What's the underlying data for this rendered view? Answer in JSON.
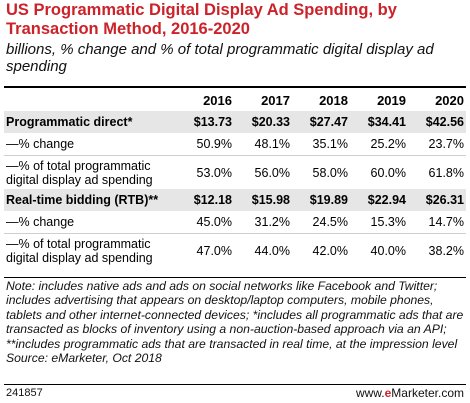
{
  "title": "US Programmatic Digital Display Ad Spending, by Transaction Method, 2016-2020",
  "subtitle": "billions, % change and % of total programmatic digital display ad spending",
  "chart_data": {
    "type": "table",
    "columns": [
      "2016",
      "2017",
      "2018",
      "2019",
      "2020"
    ],
    "rows": [
      {
        "label": "Programmatic direct*",
        "values": [
          "$13.73",
          "$20.33",
          "$27.47",
          "$34.41",
          "$42.56"
        ]
      },
      {
        "label": "—% change",
        "values": [
          "50.9%",
          "48.1%",
          "35.1%",
          "25.2%",
          "23.7%"
        ]
      },
      {
        "label": "—% of total programmatic digital display ad spending",
        "values": [
          "53.0%",
          "56.0%",
          "58.0%",
          "60.0%",
          "61.8%"
        ]
      },
      {
        "label": "Real-time bidding (RTB)**",
        "values": [
          "$12.18",
          "$15.98",
          "$19.89",
          "$22.94",
          "$26.31"
        ]
      },
      {
        "label": "—% change",
        "values": [
          "45.0%",
          "31.2%",
          "24.5%",
          "15.3%",
          "14.7%"
        ]
      },
      {
        "label": "—% of total programmatic digital display ad spending",
        "values": [
          "47.0%",
          "44.0%",
          "42.0%",
          "40.0%",
          "38.2%"
        ]
      }
    ]
  },
  "note": "Note: includes native ads and ads on social networks like Facebook and Twitter; includes advertising that appears on desktop/laptop computers, mobile phones, tablets and other internet-connected devices; *includes all programmatic ads that are transacted as blocks of inventory using a non-auction-based approach via an API; **includes programmatic ads that are transacted in real time, at the impression level",
  "source": "Source: eMarketer, Oct 2018",
  "chart_id": "241857",
  "logo": {
    "prefix": "www.",
    "brand_letter": "e",
    "brand_rest": "Marketer",
    "suffix": ".com"
  },
  "colors": {
    "title": "#cc2229",
    "row_highlight": "#e6e6e6"
  }
}
